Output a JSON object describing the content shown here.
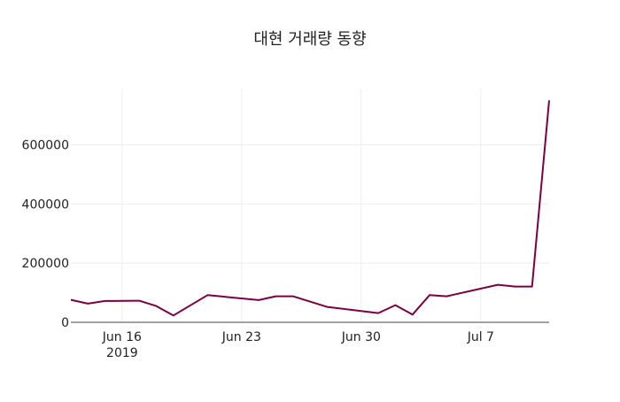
{
  "chart_data": {
    "type": "line",
    "title": "대현 거래량 동향",
    "xlabel": "",
    "ylabel": "",
    "x": [
      "2019-06-13",
      "2019-06-14",
      "2019-06-15",
      "2019-06-17",
      "2019-06-18",
      "2019-06-19",
      "2019-06-21",
      "2019-06-24",
      "2019-06-25",
      "2019-06-26",
      "2019-06-28",
      "2019-07-01",
      "2019-07-02",
      "2019-07-03",
      "2019-07-04",
      "2019-07-05",
      "2019-07-08",
      "2019-07-09",
      "2019-07-10",
      "2019-07-11"
    ],
    "values": [
      76000,
      63000,
      72000,
      73000,
      55000,
      23000,
      92000,
      75000,
      88000,
      88000,
      52000,
      31000,
      58000,
      26000,
      92000,
      88000,
      127000,
      121000,
      121000,
      750000
    ],
    "xlim": [
      "2019-06-13",
      "2019-07-11"
    ],
    "ylim": [
      0,
      790000
    ],
    "x_ticks": [
      {
        "date": "2019-06-16",
        "label": "Jun 16",
        "sublabel": "2019"
      },
      {
        "date": "2019-06-23",
        "label": "Jun 23",
        "sublabel": ""
      },
      {
        "date": "2019-06-30",
        "label": "Jun 30",
        "sublabel": ""
      },
      {
        "date": "2019-07-07",
        "label": "Jul 7",
        "sublabel": ""
      }
    ],
    "y_ticks": [
      0,
      200000,
      400000,
      600000
    ],
    "grid": true,
    "colors": {
      "line": "#7b0041",
      "grid": "#eeeeee",
      "axis": "#444444"
    }
  }
}
